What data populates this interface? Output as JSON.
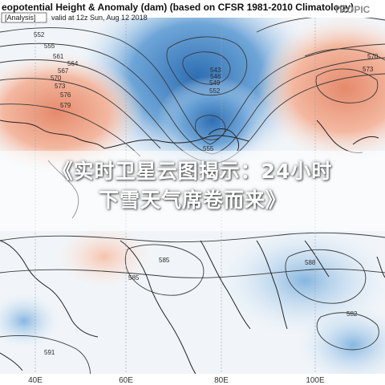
{
  "map": {
    "title": "eopotential Height & Anomaly (dam) (based on CFSR 1981-2010 Climatology)",
    "analysis_label": "[Analysis]",
    "valid_label": "valid at 12z Sun, Aug 12 2018",
    "region_label": "TROPIC",
    "contour_labels": [
      "552",
      "555",
      "561",
      "564",
      "567",
      "570",
      "573",
      "576",
      "579",
      "543",
      "546",
      "549",
      "552",
      "555",
      "570",
      "573",
      "585",
      "588",
      "585",
      "582",
      "591"
    ],
    "longitude_labels": [
      "40E",
      "60E",
      "80E",
      "100E"
    ],
    "colors": {
      "positive_anomaly": "#f0a184",
      "negative_anomaly": "#4f8fca",
      "contour": "#3a3a3a",
      "coastline": "#222222"
    }
  },
  "headline": {
    "line1": "《实时卫星云图揭示：24小时",
    "line2": "下雪天气席卷而来》"
  }
}
